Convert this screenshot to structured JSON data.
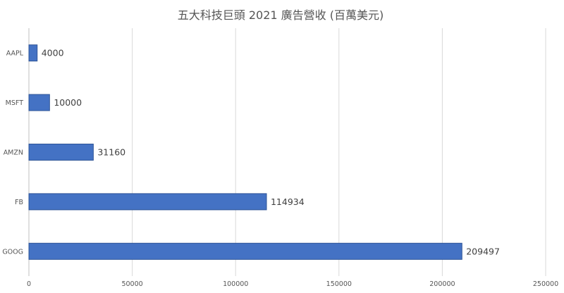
{
  "chart_data": {
    "type": "bar",
    "orientation": "horizontal",
    "title": "五大科技巨頭 2021 廣告營收 (百萬美元)",
    "categories": [
      "AAPL",
      "MSFT",
      "AMZN",
      "FB",
      "GOOG"
    ],
    "values": [
      4000,
      10000,
      31160,
      114934,
      209497
    ],
    "data_labels": [
      "4000",
      "10000",
      "31160",
      "114934",
      "209497"
    ],
    "xlim": [
      0,
      250000
    ],
    "x_ticks": [
      0,
      50000,
      100000,
      150000,
      200000,
      250000
    ],
    "x_tick_labels": [
      "0",
      "50000",
      "100000",
      "150000",
      "200000",
      "250000"
    ],
    "xlabel": "",
    "ylabel": "",
    "grid": "vertical",
    "legend": "none",
    "bar_color": "#4472c4"
  }
}
